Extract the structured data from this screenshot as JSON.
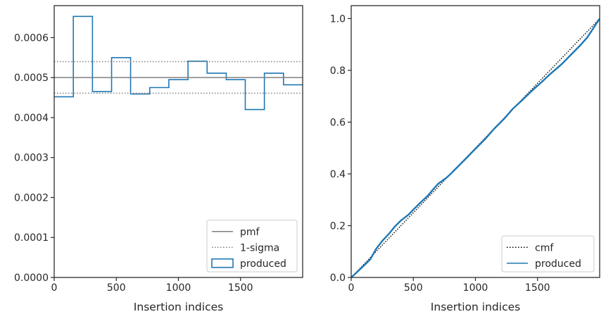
{
  "chart_data": [
    {
      "type": "step-histogram",
      "xlabel": "Insertion indices",
      "ylabel": "",
      "xlim": [
        0,
        2000
      ],
      "ylim": [
        0,
        0.00068
      ],
      "xticks": [
        0,
        500,
        1000,
        1500
      ],
      "xtick_labels": [
        "0",
        "500",
        "1000",
        "1500"
      ],
      "yticks": [
        0,
        0.0001,
        0.0002,
        0.0003,
        0.0004,
        0.0005,
        0.0006
      ],
      "ytick_labels": [
        "0.0000",
        "0.0001",
        "0.0002",
        "0.0003",
        "0.0004",
        "0.0005",
        "0.0006"
      ],
      "bin_edges": [
        0,
        154,
        308,
        462,
        615,
        769,
        923,
        1077,
        1231,
        1385,
        1538,
        1692,
        1846,
        2000
      ],
      "series": [
        {
          "name": "produced",
          "kind": "histogram",
          "color": "#1f77b4",
          "values": [
            0.000452,
            0.000653,
            0.000465,
            0.00055,
            0.000459,
            0.000475,
            0.000495,
            0.000541,
            0.000511,
            0.000495,
            0.00042,
            0.000511,
            0.000482
          ]
        },
        {
          "name": "pmf",
          "kind": "hline",
          "color": "#808080",
          "value": 0.0005
        },
        {
          "name": "1-sigma",
          "kind": "hline-dotted",
          "color": "#808080",
          "values": [
            0.000461,
            0.00054
          ]
        }
      ],
      "legend_position": "lower-right",
      "legend": [
        "pmf",
        "1-sigma",
        "produced"
      ]
    },
    {
      "type": "line",
      "xlabel": "Insertion indices",
      "ylabel": "",
      "xlim": [
        0,
        2000
      ],
      "ylim": [
        0,
        1.05
      ],
      "xticks": [
        0,
        500,
        1000,
        1500
      ],
      "xtick_labels": [
        "0",
        "500",
        "1000",
        "1500"
      ],
      "yticks": [
        0,
        0.2,
        0.4,
        0.6,
        0.8,
        1.0
      ],
      "ytick_labels": [
        "0.0",
        "0.2",
        "0.4",
        "0.6",
        "0.8",
        "1.0"
      ],
      "series": [
        {
          "name": "cmf",
          "kind": "line-dotted",
          "color": "#000000",
          "x": [
            0,
            2000
          ],
          "y": [
            0,
            1.0
          ]
        },
        {
          "name": "produced",
          "kind": "line",
          "color": "#1f77b4",
          "x": [
            0,
            50,
            100,
            154,
            200,
            250,
            308,
            350,
            400,
            462,
            500,
            550,
            615,
            650,
            700,
            769,
            800,
            850,
            923,
            1000,
            1077,
            1150,
            1231,
            1300,
            1385,
            1450,
            1538,
            1600,
            1692,
            1750,
            1846,
            1900,
            2000
          ],
          "y": [
            0,
            0.022,
            0.045,
            0.07,
            0.11,
            0.141,
            0.171,
            0.196,
            0.22,
            0.243,
            0.262,
            0.286,
            0.315,
            0.335,
            0.362,
            0.386,
            0.4,
            0.424,
            0.459,
            0.497,
            0.534,
            0.574,
            0.613,
            0.651,
            0.689,
            0.719,
            0.757,
            0.785,
            0.823,
            0.851,
            0.898,
            0.927,
            1.0
          ]
        }
      ],
      "legend_position": "lower-right",
      "legend": [
        "cmf",
        "produced"
      ]
    }
  ]
}
